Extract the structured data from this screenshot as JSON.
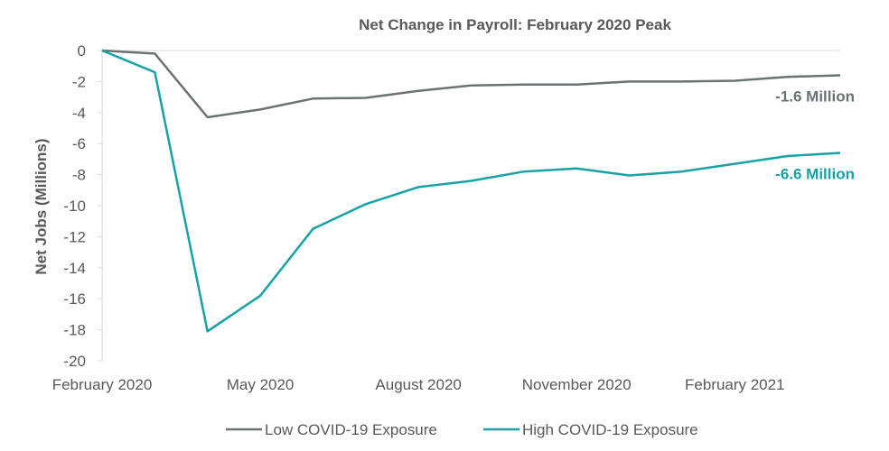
{
  "chart_data": {
    "type": "line",
    "title": "Net Change in Payroll: February 2020 Peak",
    "xlabel": "",
    "ylabel": "Net Jobs (Millions)",
    "ylim": [
      -20,
      0
    ],
    "yticks": [
      0,
      -2,
      -4,
      -6,
      -8,
      -10,
      -12,
      -14,
      -16,
      -18,
      -20
    ],
    "x": [
      "2020-02",
      "2020-03",
      "2020-04",
      "2020-05",
      "2020-06",
      "2020-07",
      "2020-08",
      "2020-09",
      "2020-10",
      "2020-11",
      "2020-12",
      "2021-01",
      "2021-02",
      "2021-03",
      "2021-04"
    ],
    "xtick_labels": [
      {
        "x": "2020-02",
        "label": "February 2020"
      },
      {
        "x": "2020-05",
        "label": "May 2020"
      },
      {
        "x": "2020-08",
        "label": "August 2020"
      },
      {
        "x": "2020-11",
        "label": "November 2020"
      },
      {
        "x": "2021-02",
        "label": "February 2021"
      }
    ],
    "grid": false,
    "legend_position": "bottom",
    "series": [
      {
        "name": "Low COVID-19 Exposure",
        "color": "#6b7372",
        "values": [
          0,
          -0.2,
          -4.3,
          -3.8,
          -3.1,
          -3.05,
          -2.6,
          -2.25,
          -2.2,
          -2.2,
          -2.0,
          -2.0,
          -1.95,
          -1.7,
          -1.6
        ],
        "end_label": "-1.6 Million"
      },
      {
        "name": "High COVID-19 Exposure",
        "color": "#17a2a6",
        "values": [
          0,
          -1.4,
          -18.1,
          -15.8,
          -11.5,
          -9.9,
          -8.8,
          -8.4,
          -7.8,
          -7.6,
          -8.05,
          -7.8,
          -7.3,
          -6.8,
          -6.6
        ],
        "end_label": "-6.6 Million"
      }
    ]
  }
}
